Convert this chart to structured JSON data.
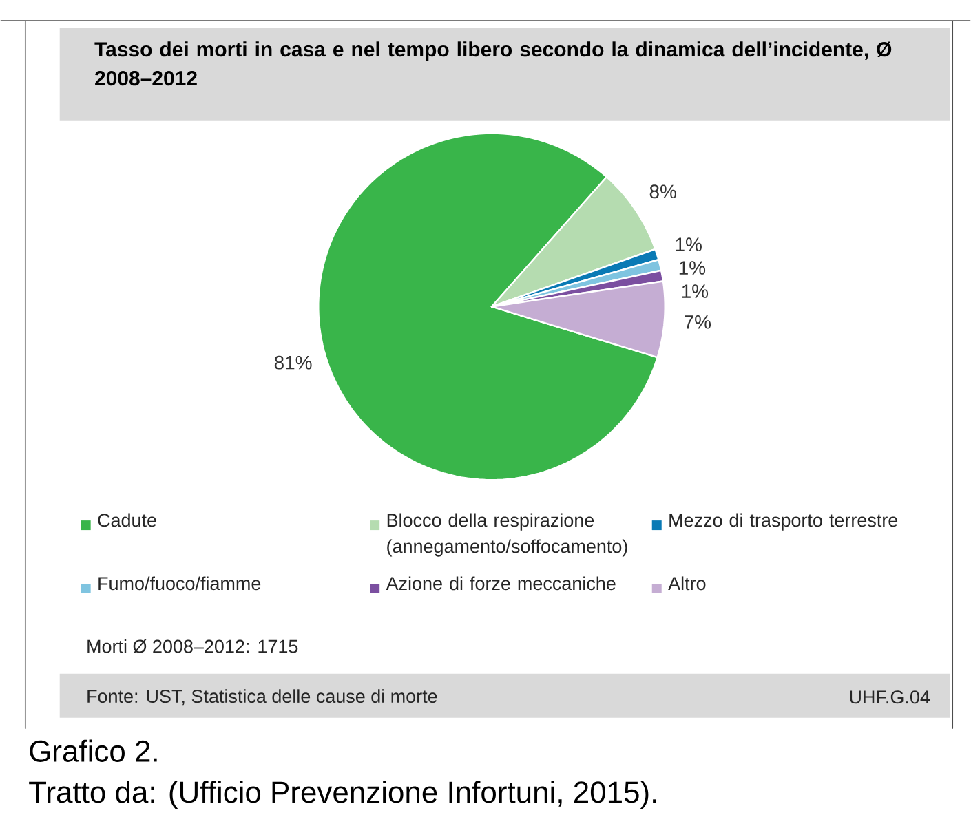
{
  "chart_data": {
    "type": "pie",
    "title": "Tasso dei morti in casa e nel tempo libero secondo la dinamica dell’incidente, Ø 2008–2012",
    "categories": [
      "Cadute",
      "Blocco della respirazione (annegamento/soffocamento)",
      "Mezzo di trasporto terrestre",
      "Fumo/fuoco/fiamme",
      "Azione di forze meccaniche",
      "Altro"
    ],
    "values": [
      81,
      8,
      1,
      1,
      1,
      7
    ],
    "value_labels": [
      "81%",
      "8%",
      "1%",
      "1%",
      "1%",
      "7%"
    ],
    "colors": [
      "#39b54a",
      "#b5dcb0",
      "#0a7ab5",
      "#7fc4e0",
      "#7b4fa0",
      "#c5add3"
    ],
    "legend": "bottom",
    "annotations": [
      "Morti Ø 2008–2012: 1715",
      "Fonte: UST, Statistica delle cause di morte",
      "UHF.G.04",
      "Grafico 2.",
      "Tratto da: (Ufficio Prevenzione Infortuni, 2015)."
    ]
  }
}
